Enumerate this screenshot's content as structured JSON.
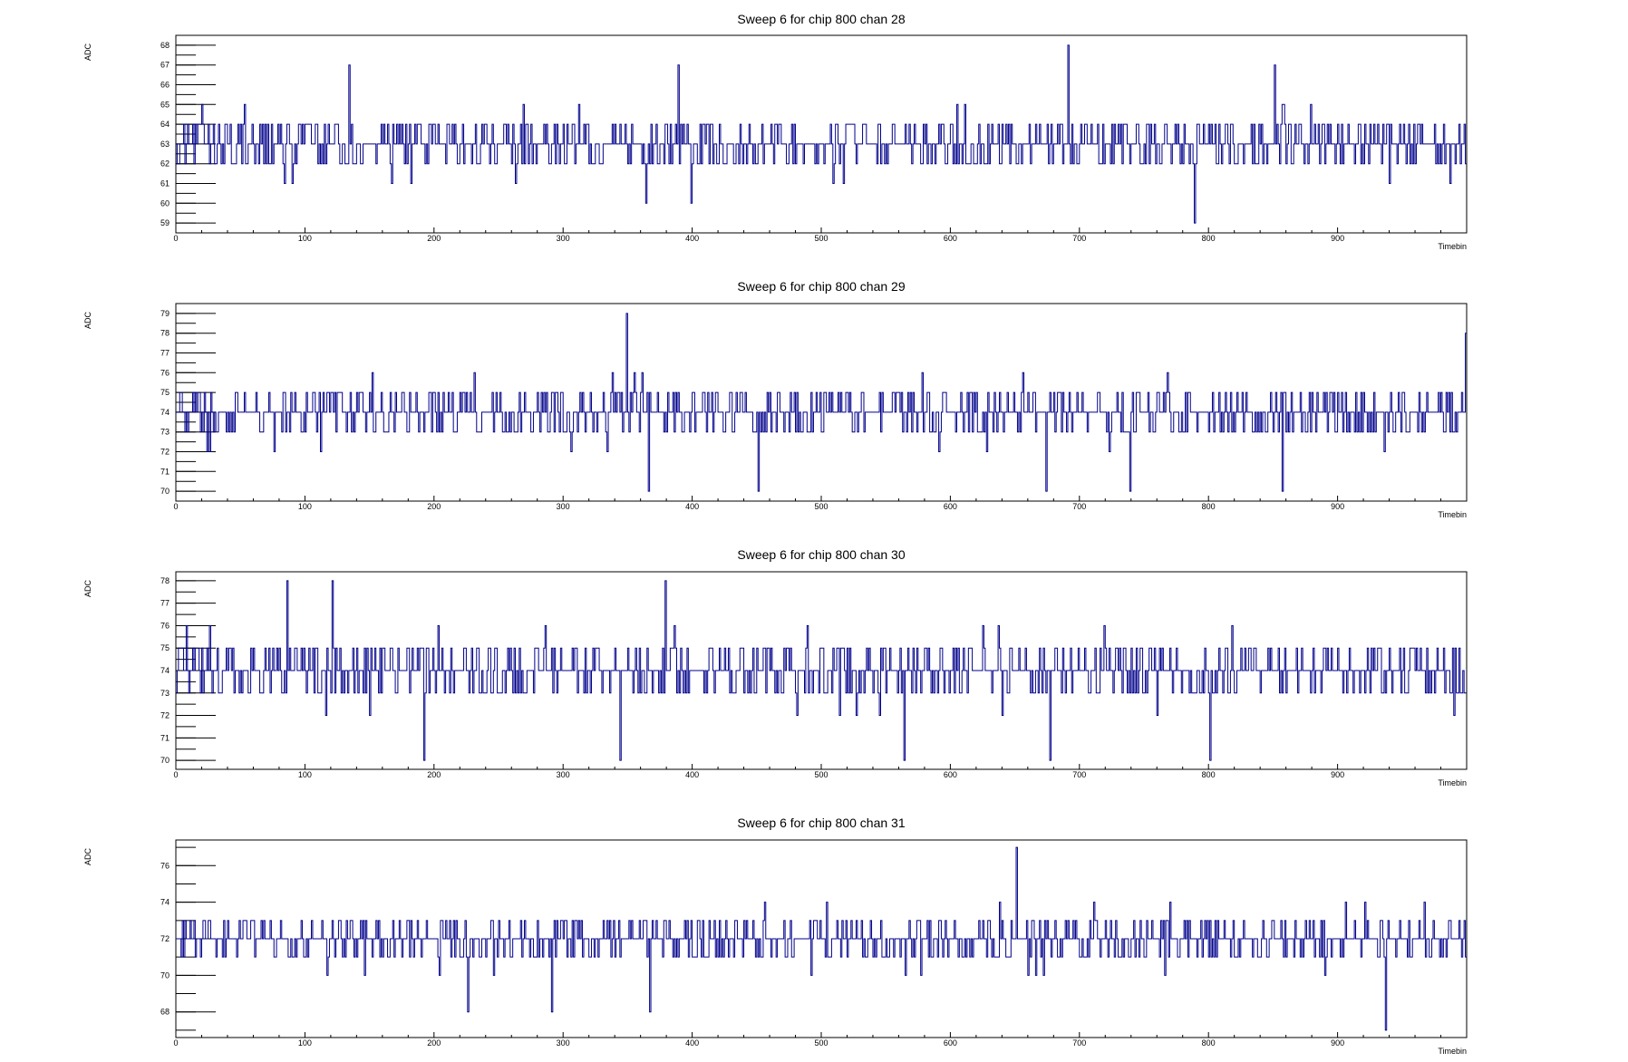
{
  "chart_data": [
    {
      "type": "line",
      "title": "Sweep 6 for chip 800 chan 28",
      "xlabel": "Timebin",
      "ylabel": "ADC",
      "xlim": [
        0,
        1000
      ],
      "ylim": [
        58.5,
        68.5
      ],
      "x_ticks": [
        0,
        100,
        200,
        300,
        400,
        500,
        600,
        700,
        800,
        900
      ],
      "y_ticks": [
        59,
        60,
        61,
        62,
        63,
        64,
        65,
        66,
        67,
        68
      ],
      "baseline": 63,
      "range": [
        59,
        68
      ],
      "seed": 2828,
      "spikes": [
        [
          135,
          67
        ],
        [
          365,
          60
        ],
        [
          390,
          67
        ],
        [
          400,
          60
        ],
        [
          692,
          68
        ],
        [
          790,
          59
        ],
        [
          852,
          67
        ],
        [
          1000,
          62
        ]
      ],
      "color": "#00008b"
    },
    {
      "type": "line",
      "title": "Sweep 6 for chip 800 chan 29",
      "xlabel": "Timebin",
      "ylabel": "ADC",
      "xlim": [
        0,
        1000
      ],
      "ylim": [
        69.5,
        79.5
      ],
      "x_ticks": [
        0,
        100,
        200,
        300,
        400,
        500,
        600,
        700,
        800,
        900
      ],
      "y_ticks": [
        70,
        71,
        72,
        73,
        74,
        75,
        76,
        77,
        78,
        79
      ],
      "baseline": 74,
      "range": [
        70,
        78
      ],
      "seed": 2929,
      "spikes": [
        [
          350,
          79
        ],
        [
          367,
          70
        ],
        [
          452,
          70
        ],
        [
          675,
          70
        ],
        [
          740,
          70
        ],
        [
          858,
          70
        ],
        [
          1000,
          78
        ]
      ],
      "color": "#00008b"
    },
    {
      "type": "line",
      "title": "Sweep 6 for chip 800 chan 30",
      "xlabel": "Timebin",
      "ylabel": "ADC",
      "xlim": [
        0,
        1000
      ],
      "ylim": [
        69.6,
        78.4
      ],
      "x_ticks": [
        0,
        100,
        200,
        300,
        400,
        500,
        600,
        700,
        800,
        900
      ],
      "y_ticks": [
        70,
        71,
        72,
        73,
        74,
        75,
        76,
        77,
        78
      ],
      "baseline": 74,
      "range": [
        70,
        78
      ],
      "seed": 3030,
      "spikes": [
        [
          87,
          78
        ],
        [
          122,
          78
        ],
        [
          193,
          70
        ],
        [
          345,
          70
        ],
        [
          380,
          78
        ],
        [
          565,
          70
        ],
        [
          678,
          70
        ],
        [
          802,
          70
        ]
      ],
      "color": "#00008b"
    },
    {
      "type": "line",
      "title": "Sweep 6 for chip 800 chan 31",
      "xlabel": "Timebin",
      "ylabel": "ADC",
      "xlim": [
        0,
        1000
      ],
      "ylim": [
        66.6,
        77.4
      ],
      "x_ticks": [
        0,
        100,
        200,
        300,
        400,
        500,
        600,
        700,
        800,
        900
      ],
      "y_ticks": [
        68,
        70,
        72,
        74,
        76
      ],
      "baseline": 72,
      "range": [
        68,
        76
      ],
      "seed": 3131,
      "spikes": [
        [
          227,
          68
        ],
        [
          292,
          68
        ],
        [
          368,
          68
        ],
        [
          652,
          77
        ],
        [
          938,
          67
        ]
      ],
      "color": "#00008b"
    }
  ]
}
